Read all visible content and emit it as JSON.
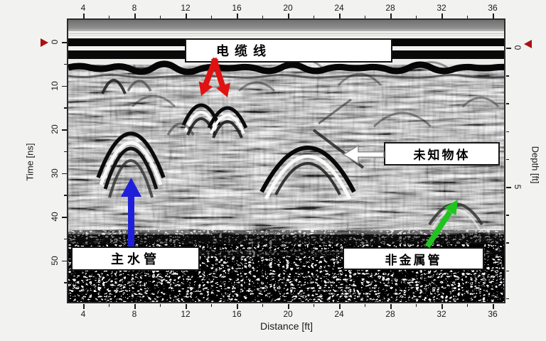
{
  "chart_data": {
    "type": "heatmap",
    "title": "",
    "xlabel": "Distance [ft]",
    "ylabel_left": "Time [ns]",
    "ylabel_right": "Depth [ft]",
    "x_ticks": [
      4,
      8,
      12,
      16,
      20,
      24,
      28,
      32,
      36
    ],
    "x_minor_ticks": [
      6,
      10,
      14,
      18,
      22,
      26,
      30,
      34
    ],
    "x_range": [
      2.8,
      37.0
    ],
    "time_ticks": [
      0,
      10,
      20,
      30,
      40,
      50
    ],
    "time_minor_ticks": [
      5,
      15,
      25,
      35,
      45,
      55
    ],
    "time_range": [
      -5,
      59.5
    ],
    "depth_ticks": [
      0,
      5
    ],
    "depth_minor_ticks": [
      1,
      2,
      3,
      4,
      6,
      7,
      8,
      9
    ],
    "depth_range": [
      -1,
      9.1
    ],
    "grid": false,
    "annotations": [
      {
        "label": "电缆线",
        "arrow": "red-double-down",
        "arrow_color": "#e01212",
        "points_to": {
          "distance_ft": [
            13.2,
            15.3
          ],
          "time_ns": [
            12,
            13
          ]
        }
      },
      {
        "label": "未知物体",
        "arrow": "white-left",
        "arrow_color": "#ffffff",
        "points_to": {
          "distance_ft": 21.4,
          "time_ns": 23.5
        }
      },
      {
        "label": "主水管",
        "arrow": "blue-up",
        "arrow_color": "#1f1fd9",
        "points_to": {
          "distance_ft": 7.8,
          "time_ns": 21
        }
      },
      {
        "label": "非金属管",
        "arrow": "green-up-right",
        "arrow_color": "#1fc41f",
        "points_to": {
          "distance_ft": 32.8,
          "time_ns": 35
        }
      }
    ],
    "features": [
      {
        "type": "hyperbola",
        "distance_ft": 7.8,
        "time_ns": 20.8,
        "strength": "strong"
      },
      {
        "type": "hyperbola",
        "distance_ft": 13.2,
        "time_ns": 12.8,
        "strength": "medium"
      },
      {
        "type": "hyperbola",
        "distance_ft": 15.3,
        "time_ns": 13.5,
        "strength": "medium"
      },
      {
        "type": "hyperbola",
        "distance_ft": 21.4,
        "time_ns": 23.3,
        "strength": "strong"
      },
      {
        "type": "hyperbola",
        "distance_ft": 32.8,
        "time_ns": 35.0,
        "strength": "faint"
      },
      {
        "type": "horizontal-band",
        "time_ns": [
          0,
          4
        ],
        "strength": "very-strong"
      },
      {
        "type": "horizontal-band",
        "time_ns": [
          44,
          47
        ],
        "strength": "strong"
      }
    ]
  },
  "axis_titles": {
    "x": "Distance [ft]",
    "left": "Time [ns]",
    "right": "Depth [ft]"
  },
  "annotations": {
    "cable": {
      "label": "电缆线"
    },
    "unknown": {
      "label": "未知物体"
    },
    "water": {
      "label": "主水管"
    },
    "nonmetal": {
      "label": "非金属管"
    }
  },
  "colors": {
    "annotation_red": "#e01212",
    "annotation_blue": "#1f1fd9",
    "annotation_green": "#1fc41f",
    "annotation_white": "#ffffff",
    "zero_marker_red": "#a81212",
    "frame": "#2b2b2b",
    "background": "#f2f2f0"
  }
}
